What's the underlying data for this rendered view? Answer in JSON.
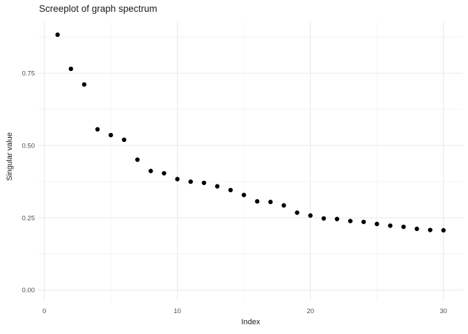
{
  "chart_data": {
    "type": "scatter",
    "title": "Screeplot of graph spectrum",
    "xlabel": "Index",
    "ylabel": "Singular value",
    "x": [
      1,
      2,
      3,
      4,
      5,
      6,
      7,
      8,
      9,
      10,
      11,
      12,
      13,
      14,
      15,
      16,
      17,
      18,
      19,
      20,
      21,
      22,
      23,
      24,
      25,
      26,
      27,
      28,
      29,
      30
    ],
    "values": [
      0.883,
      0.765,
      0.711,
      0.556,
      0.536,
      0.52,
      0.451,
      0.412,
      0.404,
      0.384,
      0.375,
      0.371,
      0.359,
      0.346,
      0.329,
      0.307,
      0.305,
      0.293,
      0.268,
      0.258,
      0.248,
      0.246,
      0.239,
      0.236,
      0.229,
      0.223,
      0.219,
      0.212,
      0.208,
      0.207
    ],
    "x_ticks": [
      0,
      10,
      20,
      30
    ],
    "x_tick_labels": [
      "0",
      "10",
      "20",
      "30"
    ],
    "x_minor_ticks": [
      5,
      15,
      25
    ],
    "y_ticks": [
      0,
      0.25,
      0.5,
      0.75
    ],
    "y_tick_labels": [
      "0.00",
      "0.25",
      "0.50",
      "0.75"
    ],
    "y_minor_ticks": [
      0.125,
      0.375,
      0.625,
      0.875
    ],
    "xlim": [
      -0.45,
      31.45
    ],
    "ylim": [
      -0.036,
      0.926
    ],
    "grid": "on",
    "legend": "none",
    "point_radius": 3.2,
    "colors": {
      "point": "#000000",
      "grid_major": "#e7e7e7",
      "grid_minor": "#f4f4f4",
      "tick_text": "#4d4d4d",
      "text": "#1a1a1a",
      "background": "#ffffff"
    }
  }
}
